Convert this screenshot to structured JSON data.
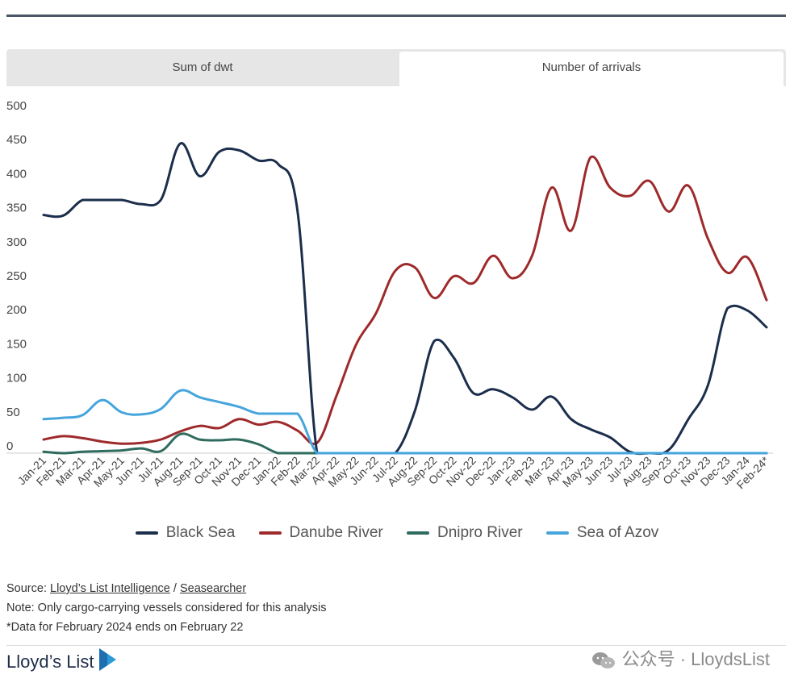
{
  "tabs": {
    "sum_label": "Sum of dwt",
    "arrivals_label": "Number of arrivals"
  },
  "chart_data": {
    "type": "line",
    "ylim": [
      0,
      500
    ],
    "yticks": [
      0,
      50,
      100,
      150,
      200,
      250,
      300,
      350,
      400,
      450,
      500
    ],
    "categories": [
      "Jan-21",
      "Feb-21",
      "Mar-21",
      "Apr-21",
      "May-21",
      "Jun-21",
      "Jul-21",
      "Aug-21",
      "Sep-21",
      "Oct-21",
      "Nov-21",
      "Dec-21",
      "Jan-22",
      "Feb-22",
      "Mar-22",
      "Apr-22",
      "May-22",
      "Jun-22",
      "Jul-22",
      "Aug-22",
      "Sep-22",
      "Oct-22",
      "Nov-22",
      "Dec-22",
      "Jan-23",
      "Feb-23",
      "Mar-23",
      "Apr-23",
      "May-23",
      "Jun-23",
      "Jul-23",
      "Aug-23",
      "Sep-23",
      "Oct-23",
      "Nov-23",
      "Dec-23",
      "Jan-24",
      "Feb-24*"
    ],
    "series": [
      {
        "name": "Black Sea",
        "color": "#1b2e4b",
        "values": [
          350,
          349,
          372,
          372,
          372,
          366,
          372,
          455,
          407,
          443,
          445,
          430,
          425,
          355,
          0,
          0,
          0,
          0,
          0,
          62,
          165,
          140,
          88,
          94,
          82,
          64,
          83,
          50,
          35,
          23,
          2,
          0,
          5,
          50,
          100,
          213,
          210,
          185
        ]
      },
      {
        "name": "Danube River",
        "color": "#9e2a2b",
        "values": [
          20,
          25,
          22,
          17,
          14,
          15,
          20,
          32,
          40,
          37,
          50,
          42,
          46,
          33,
          15,
          85,
          160,
          205,
          268,
          273,
          228,
          260,
          250,
          290,
          257,
          290,
          390,
          327,
          435,
          390,
          378,
          400,
          355,
          393,
          315,
          265,
          288,
          225
        ]
      },
      {
        "name": "Dnipro River",
        "color": "#2f6b5e",
        "values": [
          2,
          0,
          2,
          3,
          4,
          7,
          3,
          28,
          20,
          19,
          20,
          13,
          0,
          0,
          0,
          0,
          0,
          0,
          0,
          0,
          0,
          0,
          0,
          0,
          0,
          0,
          0,
          0,
          0,
          0,
          0,
          0,
          0,
          0,
          0,
          0,
          0,
          0
        ]
      },
      {
        "name": "Sea of Azov",
        "color": "#45a5dc",
        "values": [
          50,
          52,
          56,
          78,
          60,
          57,
          65,
          92,
          82,
          75,
          68,
          58,
          58,
          58,
          0,
          0,
          0,
          0,
          0,
          0,
          0,
          0,
          0,
          0,
          0,
          0,
          0,
          0,
          0,
          0,
          0,
          0,
          0,
          0,
          0,
          0,
          0,
          0
        ]
      }
    ]
  },
  "footer": {
    "source_prefix": "Source: ",
    "source_link1": "Lloyd’s List Intelligence",
    "source_sep": " / ",
    "source_link2": "Seasearcher",
    "note": "Note: Only cargo-carrying vessels considered for this analysis",
    "data_note": "*Data for February 2024 ends on February 22"
  },
  "brand": {
    "name": "Lloyd’s List"
  },
  "watermark": {
    "text": "公众号 · LloydsList"
  }
}
